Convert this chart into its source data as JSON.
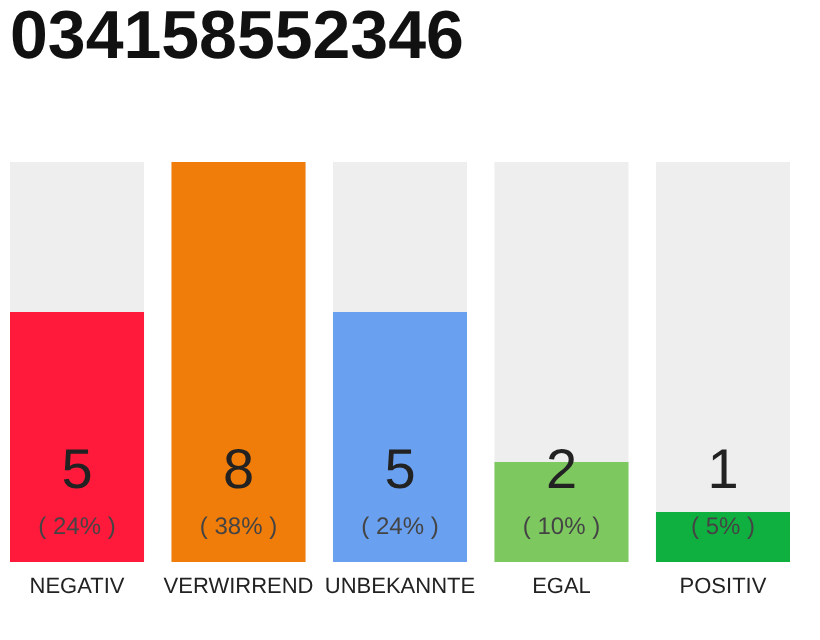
{
  "chart_data": {
    "type": "bar",
    "title": "034158552346",
    "categories": [
      "NEGATIV",
      "VERWIRREND",
      "UNBEKANNTE",
      "EGAL",
      "POSITIV"
    ],
    "values": [
      5,
      8,
      5,
      2,
      1
    ],
    "colors": [
      "#ff1a3c",
      "#f07c0a",
      "#6aa0f0",
      "#7ec860",
      "#10b040"
    ],
    "tick_labels": "x",
    "data_labels": true,
    "annotations": [
      "( 24% )",
      "( 38% )",
      "( 24% )",
      "( 10% )",
      "( 5% )"
    ]
  }
}
